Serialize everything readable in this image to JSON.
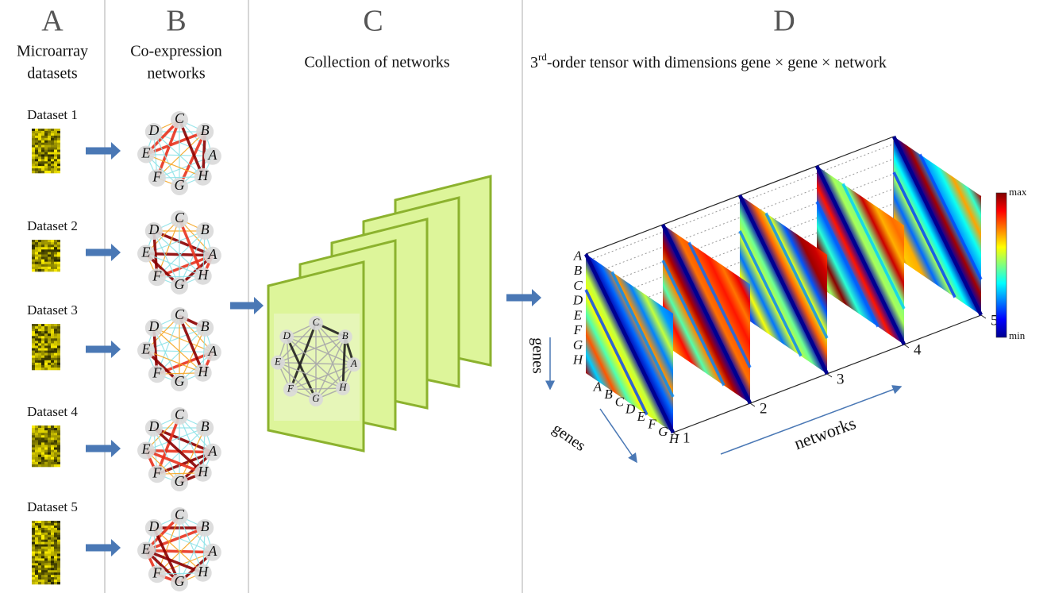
{
  "panels": [
    {
      "letter": "A",
      "title": [
        "Microarray",
        "datasets"
      ]
    },
    {
      "letter": "B",
      "title": [
        "Co-expression",
        "networks"
      ]
    },
    {
      "letter": "C",
      "title": [
        "Collection of networks"
      ]
    },
    {
      "letter": "D",
      "title": [
        "3",
        "rd",
        "-order tensor with dimensions gene × gene × network"
      ]
    }
  ],
  "datasets": [
    "Dataset 1",
    "Dataset 2",
    "Dataset 3",
    "Dataset 4",
    "Dataset 5"
  ],
  "node_labels": [
    "A",
    "B",
    "C",
    "D",
    "E",
    "F",
    "G",
    "H"
  ],
  "tensor": {
    "gene_labels": [
      "A",
      "B",
      "C",
      "D",
      "E",
      "F",
      "G",
      "H"
    ],
    "gene_axis_label": "genes",
    "network_axis_label": "networks",
    "network_ticks": [
      1,
      2,
      3,
      4,
      5
    ],
    "colorbar": {
      "max": "max",
      "min": "min"
    }
  }
}
